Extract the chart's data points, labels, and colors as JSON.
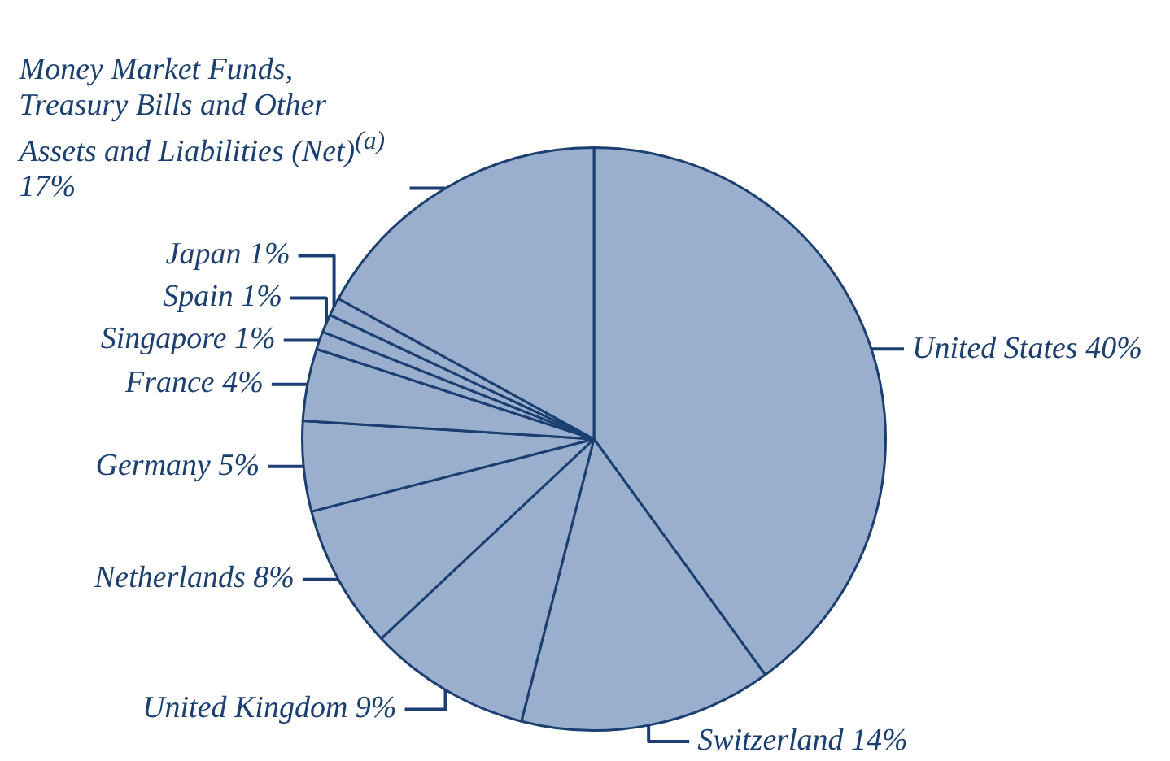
{
  "chart_data": {
    "type": "pie",
    "categories": [
      "United States",
      "Switzerland",
      "United Kingdom",
      "Netherlands",
      "Germany",
      "France",
      "Singapore",
      "Spain",
      "Japan",
      "Money Market Funds, Treasury Bills and Other Assets and Liabilities (Net)$^{(a)}$"
    ],
    "values": [
      40,
      14,
      9,
      8,
      5,
      4,
      1,
      1,
      1,
      17
    ],
    "value_labels": [
      "40%",
      "14%",
      "9%",
      "8%",
      "5%",
      "4%",
      "1%",
      "1%",
      "1%",
      "17%"
    ],
    "colors": [
      "#9aafcd",
      "#9aafcd",
      "#9aafcd",
      "#9aafcd",
      "#9aafcd",
      "#9aafcd",
      "#9aafcd",
      "#9aafcd",
      "#9aafcd",
      "#9aafcd"
    ]
  }
}
